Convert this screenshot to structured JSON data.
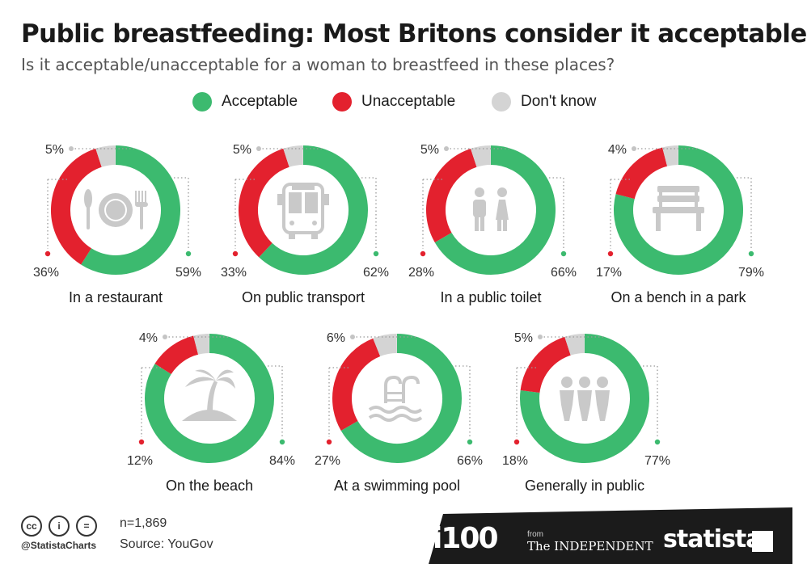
{
  "title": "Public breastfeeding: Most Britons consider it acceptable",
  "subtitle": "Is it acceptable/unacceptable for a woman to breastfeed in these places?",
  "legend": [
    {
      "label": "Acceptable",
      "color": "#3cba6f"
    },
    {
      "label": "Unacceptable",
      "color": "#e3212e"
    },
    {
      "label": "Don't know",
      "color": "#d4d4d4"
    }
  ],
  "chart_data": {
    "type": "pie",
    "subtype": "donut",
    "series_names": [
      "Acceptable",
      "Unacceptable",
      "Don't know"
    ],
    "colors": {
      "acceptable": "#3cba6f",
      "unacceptable": "#e3212e",
      "dont_know": "#d4d4d4"
    },
    "donuts": [
      {
        "label": "In a restaurant",
        "icon": "plate-cutlery-icon",
        "acceptable": 59,
        "unacceptable": 36,
        "dont_know": 5
      },
      {
        "label": "On public transport",
        "icon": "bus-icon",
        "acceptable": 62,
        "unacceptable": 33,
        "dont_know": 5
      },
      {
        "label": "In a public toilet",
        "icon": "toilet-people-icon",
        "acceptable": 66,
        "unacceptable": 28,
        "dont_know": 5
      },
      {
        "label": "On a bench in a park",
        "icon": "bench-icon",
        "acceptable": 79,
        "unacceptable": 17,
        "dont_know": 4
      },
      {
        "label": "On the beach",
        "icon": "palm-island-icon",
        "acceptable": 84,
        "unacceptable": 12,
        "dont_know": 4
      },
      {
        "label": "At a swimming pool",
        "icon": "pool-ladder-icon",
        "acceptable": 66,
        "unacceptable": 27,
        "dont_know": 6
      },
      {
        "label": "Generally in public",
        "icon": "people-group-icon",
        "acceptable": 77,
        "unacceptable": 18,
        "dont_know": 5
      }
    ]
  },
  "footer": {
    "license_icons": [
      "cc",
      "by",
      "nd"
    ],
    "handle": "@StatistaCharts",
    "n": "n=1,869",
    "source": "Source: YouGov",
    "brand_i100": "i100",
    "brand_from": "from",
    "brand_independent": "The INDEPENDENT",
    "brand_statista": "statista",
    "dark_color": "#1b1b1b"
  }
}
